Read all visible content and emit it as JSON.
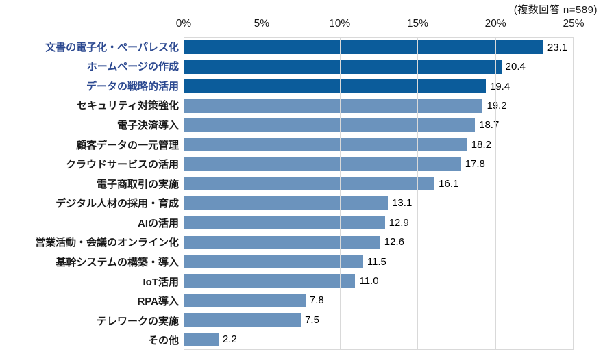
{
  "annotation": "(複数回答 n=589)",
  "colors": {
    "bar_highlight": "#0b5c9b",
    "bar_default": "#6b93bd",
    "label_highlight": "#2d4a91",
    "label_default": "#1a1a1a",
    "grid": "#d9d9d9",
    "value_text": "#000000"
  },
  "chart_data": {
    "type": "bar",
    "orientation": "horizontal",
    "title": "",
    "annotation": "(複数回答 n=589)",
    "x_axis": {
      "position": "top",
      "min": 0,
      "max": 25,
      "tick_step": 5,
      "ticks": [
        "0%",
        "5%",
        "10%",
        "15%",
        "20%",
        "25%"
      ],
      "grid": true
    },
    "categories": [
      "文書の電子化・ペーパレス化",
      "ホームページの作成",
      "データの戦略的活用",
      "セキュリティ対策強化",
      "電子決済導入",
      "顧客データの一元管理",
      "クラウドサービスの活用",
      "電子商取引の実施",
      "デジタル人材の採用・育成",
      "AIの活用",
      "営業活動・会議のオンライン化",
      "基幹システムの構築・導入",
      "IoT活用",
      "RPA導入",
      "テレワークの実施",
      "その他"
    ],
    "values": [
      23.1,
      20.4,
      19.4,
      19.2,
      18.7,
      18.2,
      17.8,
      16.1,
      13.1,
      12.9,
      12.6,
      11.5,
      11.0,
      7.8,
      7.5,
      2.2
    ],
    "highlighted_rows": [
      0,
      1,
      2
    ],
    "value_labels_shown": true,
    "legend": null
  }
}
